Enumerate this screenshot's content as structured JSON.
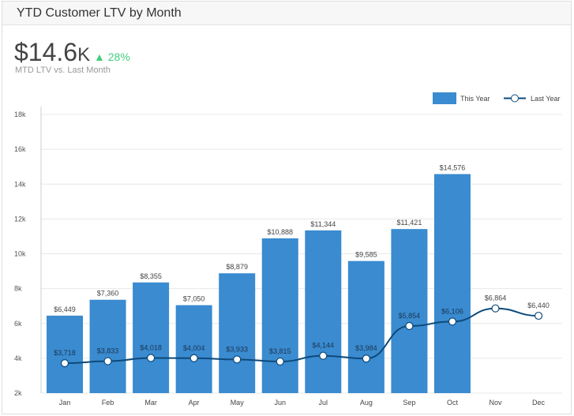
{
  "title": "YTD Customer LTV by Month",
  "kpi": {
    "value": "$14.6",
    "suffix": "K",
    "change": "▲ 28%",
    "label": "MTD LTV vs. Last Month"
  },
  "colors": {
    "bar": "#3a8bd0",
    "line": "#0d4a7a",
    "kpi_up": "#3fcf7f"
  },
  "chart_data": {
    "type": "bar",
    "categories": [
      "Jan",
      "Feb",
      "Mar",
      "Apr",
      "May",
      "Jun",
      "Jul",
      "Aug",
      "Sep",
      "Oct",
      "Nov",
      "Dec"
    ],
    "series": [
      {
        "name": "This Year",
        "type": "bar",
        "values": [
          6449,
          7360,
          8355,
          7050,
          8879,
          10888,
          11344,
          9585,
          11421,
          14576,
          null,
          null
        ],
        "labels": [
          "$6,449",
          "$7,360",
          "$8,355",
          "$7,050",
          "$8,879",
          "$10,888",
          "$11,344",
          "$9,585",
          "$11,421",
          "$14,576",
          "",
          ""
        ]
      },
      {
        "name": "Last Year",
        "type": "line",
        "values": [
          3718,
          3833,
          4018,
          4004,
          3933,
          3815,
          4144,
          3984,
          5854,
          6106,
          6864,
          6440
        ],
        "labels": [
          "$3,718",
          "$3,833",
          "$4,018",
          "$4,004",
          "$3,933",
          "$3,815",
          "$4,144",
          "$3,984",
          "$5,854",
          "$6,106",
          "$6,864",
          "$6,440"
        ]
      }
    ],
    "ylim": [
      2000,
      18000
    ],
    "yticks": [
      2000,
      4000,
      6000,
      8000,
      10000,
      12000,
      14000,
      16000,
      18000
    ],
    "ytick_labels": [
      "2k",
      "4k",
      "6k",
      "8k",
      "10k",
      "12k",
      "14k",
      "16k",
      "18k"
    ],
    "grid": true,
    "legend": "top-right"
  }
}
